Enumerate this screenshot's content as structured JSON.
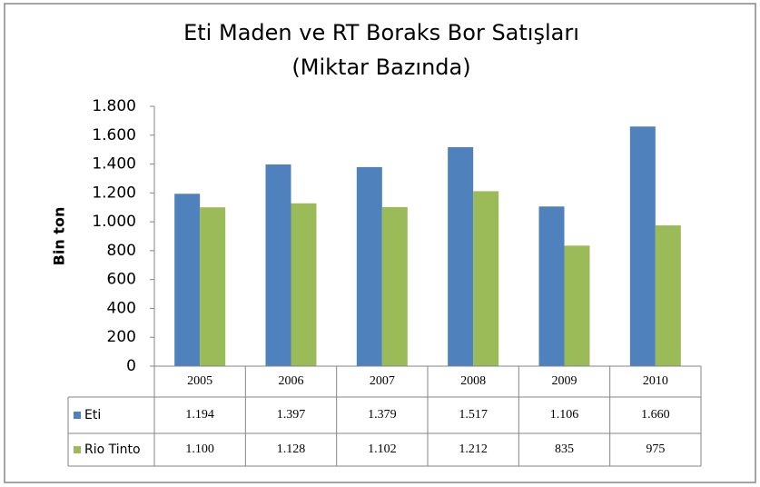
{
  "chart_data": {
    "type": "bar",
    "title": [
      "Eti Maden ve RT Boraks Bor Satışları",
      "(Miktar Bazında)"
    ],
    "y_label": "Bin ton",
    "categories": [
      "2005",
      "2006",
      "2007",
      "2008",
      "2009",
      "2010"
    ],
    "series": [
      {
        "name": "Eti",
        "color": "#4f81bd",
        "values": [
          1194,
          1397,
          1379,
          1517,
          1106,
          1660
        ],
        "value_labels": [
          "1.194",
          "1.397",
          "1.379",
          "1.517",
          "1.106",
          "1.660"
        ]
      },
      {
        "name": "Rio Tinto",
        "color": "#9bbb59",
        "values": [
          1100,
          1128,
          1102,
          1212,
          835,
          975
        ],
        "value_labels": [
          "1.100",
          "1.128",
          "1.102",
          "1.212",
          "835",
          "975"
        ]
      }
    ],
    "ylim": [
      0,
      1800
    ],
    "yticks": [
      0,
      200,
      400,
      600,
      800,
      {
        "value": 1000,
        "label": "1.000"
      },
      {
        "value": 1200,
        "label": "1.200"
      },
      {
        "value": 1400,
        "label": "1.400"
      },
      {
        "value": 1600,
        "label": "1.600"
      },
      {
        "value": 1800,
        "label": "1.800"
      }
    ]
  }
}
